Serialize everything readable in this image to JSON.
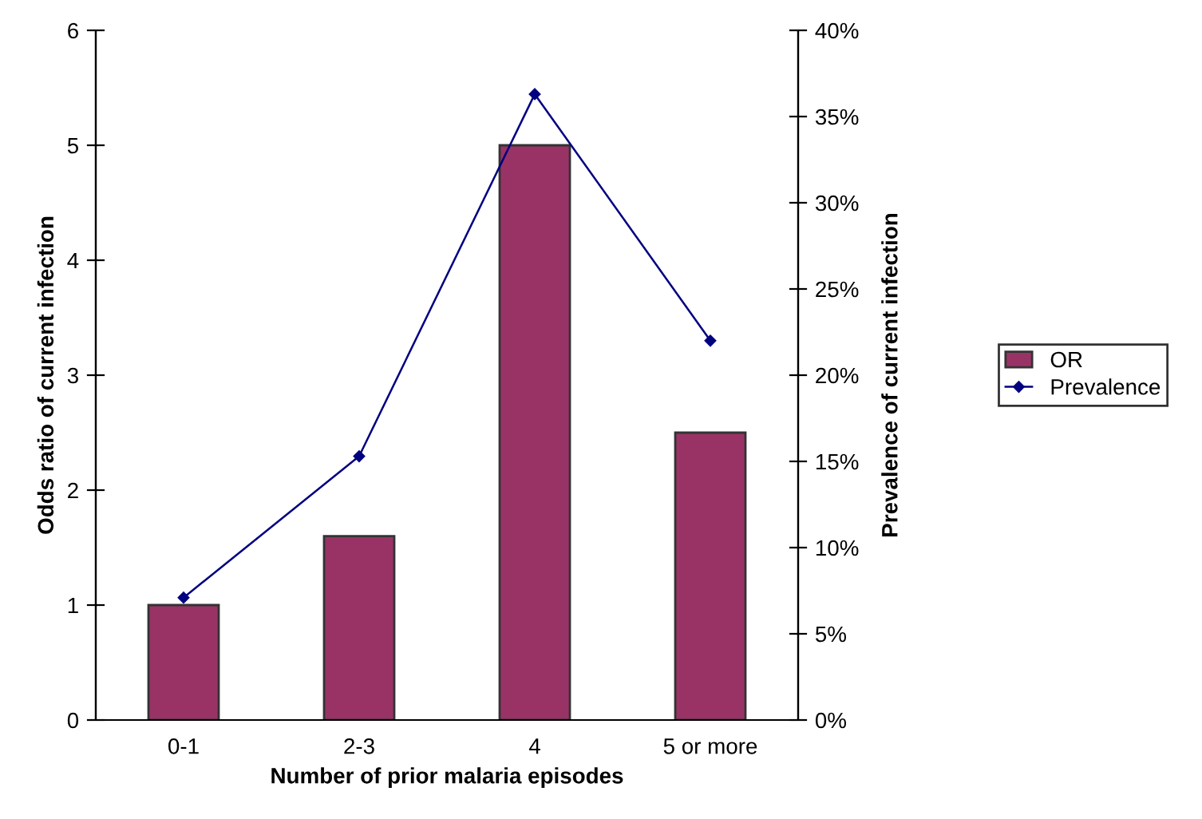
{
  "chart_data": {
    "type": "bar",
    "xlabel": "Number of prior malaria episodes",
    "ylabel": "Odds ratio of current infection",
    "y2label": "Prevalence of current infection",
    "categories": [
      "0-1",
      "2-3",
      "4",
      "5 or more"
    ],
    "series": [
      {
        "name": "OR",
        "color": "#993366",
        "values": [
          1,
          1.6,
          5,
          2.5
        ]
      },
      {
        "name": "Prevalence",
        "type": "line",
        "axis": "y2",
        "color": "#000080",
        "marker": "diamond",
        "values": [
          7.1,
          15.3,
          36.3,
          22.0
        ]
      }
    ],
    "ylim": [
      0,
      6
    ],
    "yticks": [
      0,
      1,
      2,
      3,
      4,
      5,
      6
    ],
    "y2lim": [
      0,
      40
    ],
    "y2ticks": [
      {
        "value": 0,
        "label": "0%"
      },
      {
        "value": 5,
        "label": "5%"
      },
      {
        "value": 10,
        "label": "10%"
      },
      {
        "value": 15,
        "label": "15%"
      },
      {
        "value": 20,
        "label": "20%"
      },
      {
        "value": 25,
        "label": "25%"
      },
      {
        "value": 30,
        "label": "30%"
      },
      {
        "value": 35,
        "label": "35%"
      },
      {
        "value": 40,
        "label": "40%"
      }
    ],
    "legend": "right",
    "grid": false
  }
}
